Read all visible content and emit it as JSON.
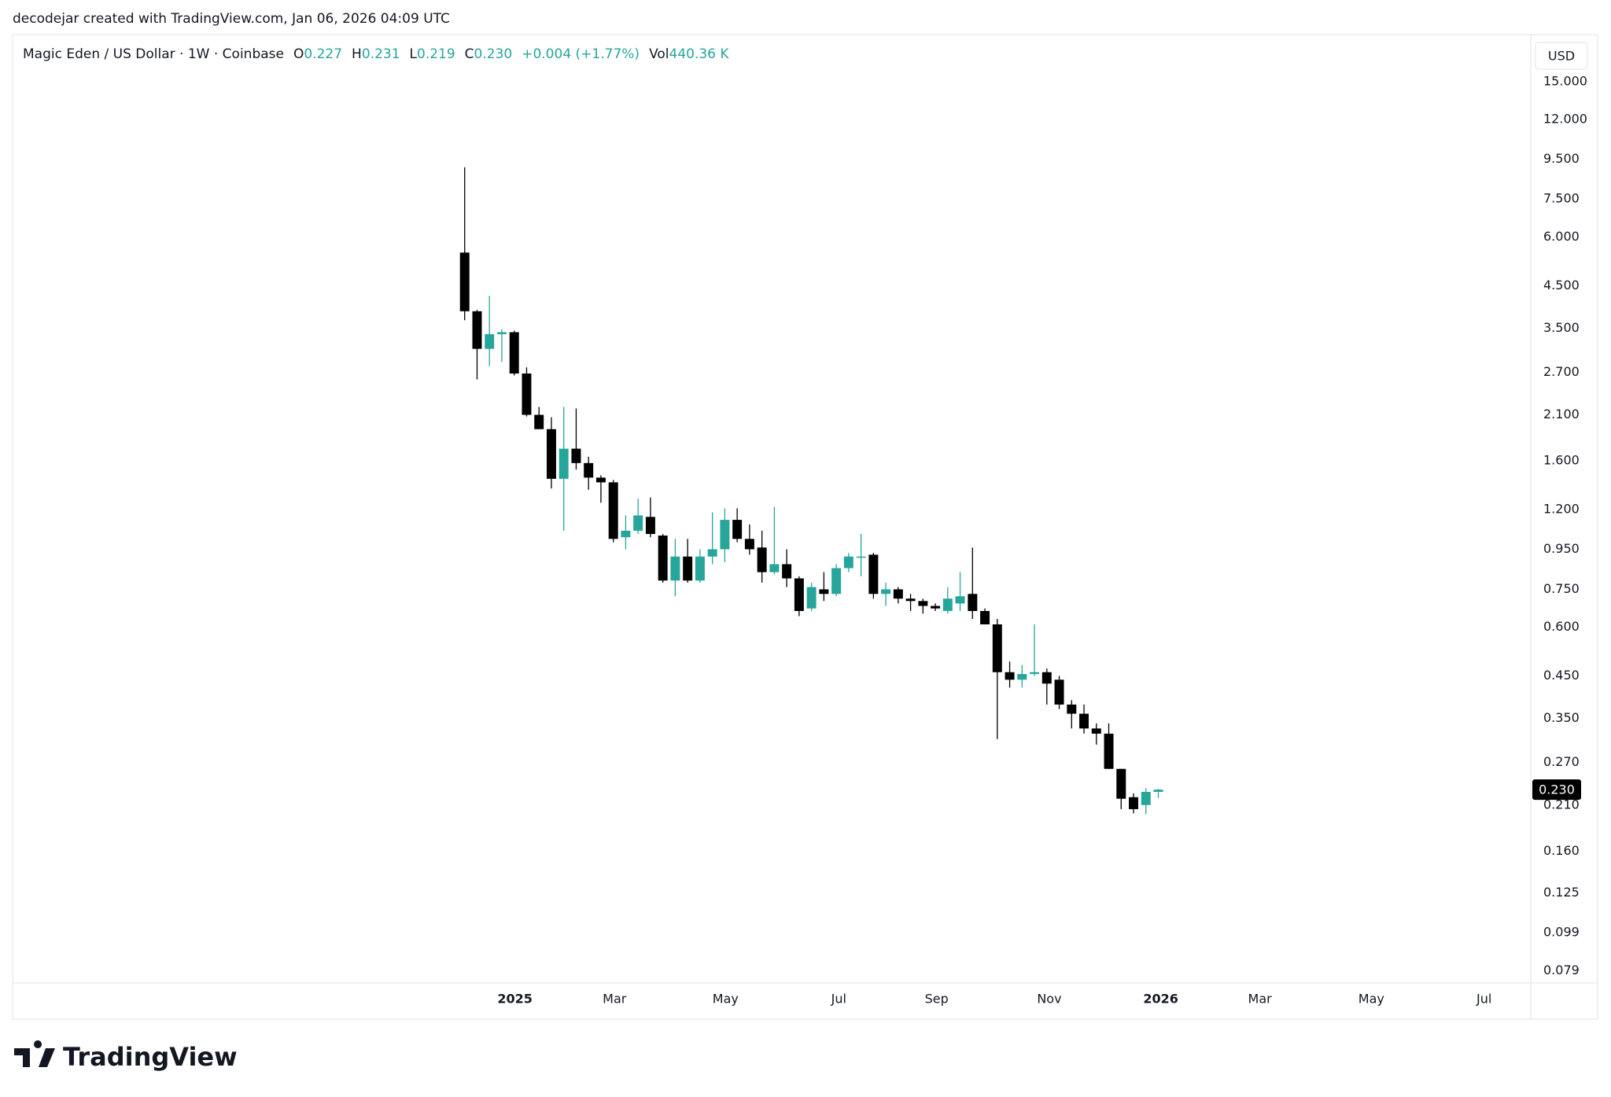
{
  "watermark": "decodejar created with TradingView.com, Jan 06, 2026 04:09 UTC",
  "legend": {
    "symbol": "Magic Eden / US Dollar · 1W · Coinbase",
    "fields": [
      {
        "label": "O",
        "value": "0.227"
      },
      {
        "label": "H",
        "value": "0.231"
      },
      {
        "label": "L",
        "value": "0.219"
      },
      {
        "label": "C",
        "value": "0.230"
      }
    ],
    "change": "+0.004 (+1.77%)",
    "volume_label": "Vol",
    "volume": "440.36 K"
  },
  "brand": "TradingView",
  "chart_data": {
    "type": "candlestick",
    "currency": "USD",
    "log_scale": true,
    "grid": false,
    "up_color": "#26a69a",
    "down_color": "#000000",
    "x": [
      0,
      1,
      2,
      3,
      4,
      5,
      6,
      7,
      8,
      9,
      10,
      11,
      12,
      13,
      14,
      15,
      16,
      17,
      18,
      19,
      20,
      21,
      22,
      23,
      24,
      25,
      26,
      27,
      28,
      29,
      30,
      31,
      32,
      33,
      34,
      35,
      36,
      37,
      38,
      39,
      40,
      41,
      42,
      43,
      44,
      45,
      46,
      47,
      48,
      49,
      50,
      51,
      52,
      53,
      54,
      55,
      56
    ],
    "open": [
      5.47,
      3.87,
      3.1,
      3.38,
      3.42,
      2.68,
      2.1,
      1.93,
      1.44,
      1.72,
      1.58,
      1.45,
      1.41,
      1.02,
      1.06,
      1.15,
      1.03,
      0.79,
      0.91,
      0.79,
      0.91,
      0.95,
      1.13,
      1.01,
      0.96,
      0.83,
      0.87,
      0.8,
      0.67,
      0.75,
      0.73,
      0.85,
      0.91,
      0.92,
      0.73,
      0.75,
      0.71,
      0.7,
      0.68,
      0.66,
      0.69,
      0.73,
      0.66,
      0.61,
      0.46,
      0.44,
      0.455,
      0.46,
      0.44,
      0.38,
      0.36,
      0.33,
      0.32,
      0.26,
      0.22,
      0.21,
      0.227
    ],
    "high": [
      9.05,
      3.9,
      4.24,
      3.48,
      3.45,
      2.78,
      2.2,
      2.07,
      2.2,
      2.18,
      1.64,
      1.47,
      1.43,
      1.16,
      1.28,
      1.29,
      1.04,
      1.01,
      1.01,
      0.95,
      1.18,
      1.21,
      1.21,
      1.1,
      1.06,
      1.22,
      0.95,
      0.81,
      0.78,
      0.83,
      0.87,
      0.93,
      1.04,
      0.93,
      0.78,
      0.76,
      0.73,
      0.71,
      0.69,
      0.76,
      0.83,
      0.96,
      0.67,
      0.63,
      0.49,
      0.48,
      0.61,
      0.47,
      0.45,
      0.39,
      0.38,
      0.34,
      0.34,
      0.26,
      0.225,
      0.232,
      0.231
    ],
    "low": [
      3.67,
      2.59,
      2.8,
      2.87,
      2.65,
      2.08,
      1.93,
      1.36,
      1.06,
      1.52,
      1.35,
      1.25,
      0.99,
      0.95,
      1.04,
      1.02,
      0.78,
      0.72,
      0.78,
      0.78,
      0.87,
      0.88,
      0.99,
      0.92,
      0.78,
      0.82,
      0.76,
      0.64,
      0.66,
      0.7,
      0.72,
      0.83,
      0.81,
      0.71,
      0.68,
      0.69,
      0.66,
      0.65,
      0.66,
      0.65,
      0.66,
      0.63,
      0.61,
      0.31,
      0.42,
      0.42,
      0.45,
      0.38,
      0.37,
      0.33,
      0.32,
      0.3,
      0.26,
      0.205,
      0.2,
      0.199,
      0.219
    ],
    "close": [
      3.87,
      3.1,
      3.38,
      3.42,
      2.68,
      2.1,
      1.93,
      1.44,
      1.72,
      1.58,
      1.45,
      1.41,
      1.01,
      1.06,
      1.16,
      1.04,
      0.79,
      0.91,
      0.79,
      0.91,
      0.95,
      1.13,
      1.01,
      0.95,
      0.83,
      0.87,
      0.8,
      0.66,
      0.76,
      0.73,
      0.85,
      0.91,
      0.91,
      0.73,
      0.75,
      0.71,
      0.7,
      0.68,
      0.67,
      0.71,
      0.72,
      0.66,
      0.61,
      0.46,
      0.44,
      0.455,
      0.46,
      0.43,
      0.38,
      0.36,
      0.33,
      0.32,
      0.26,
      0.218,
      0.205,
      0.227,
      0.23
    ],
    "xlim": [
      -36.5,
      86.07
    ],
    "xticks": [
      {
        "value": 4.06,
        "label": "2025"
      },
      {
        "value": 12.1,
        "label": "Mar"
      },
      {
        "value": 21.06,
        "label": "May"
      },
      {
        "value": 30.2,
        "label": "Jul"
      },
      {
        "value": 38.1,
        "label": "Sep"
      },
      {
        "value": 47.2,
        "label": "Nov"
      },
      {
        "value": 56.2,
        "label": "2026"
      },
      {
        "value": 64.2,
        "label": "Mar"
      },
      {
        "value": 73.2,
        "label": "May"
      },
      {
        "value": 82.3,
        "label": "Jul"
      }
    ],
    "ylim": [
      0.0735,
      19.8
    ],
    "yticks": [
      {
        "value": 15,
        "label": "15.000"
      },
      {
        "value": 12,
        "label": "12.000"
      },
      {
        "value": 9.5,
        "label": "9.500"
      },
      {
        "value": 7.5,
        "label": "7.500"
      },
      {
        "value": 6,
        "label": "6.000"
      },
      {
        "value": 4.5,
        "label": "4.500"
      },
      {
        "value": 3.5,
        "label": "3.500"
      },
      {
        "value": 2.7,
        "label": "2.700"
      },
      {
        "value": 2.1,
        "label": "2.100"
      },
      {
        "value": 1.6,
        "label": "1.600"
      },
      {
        "value": 1.2,
        "label": "1.200"
      },
      {
        "value": 0.95,
        "label": "0.950"
      },
      {
        "value": 0.75,
        "label": "0.750"
      },
      {
        "value": 0.6,
        "label": "0.600"
      },
      {
        "value": 0.45,
        "label": "0.450"
      },
      {
        "value": 0.35,
        "label": "0.350"
      },
      {
        "value": 0.27,
        "label": "0.270"
      },
      {
        "value": 0.21,
        "label": "0.210"
      },
      {
        "value": 0.16,
        "label": "0.160"
      },
      {
        "value": 0.125,
        "label": "0.125"
      },
      {
        "value": 0.099,
        "label": "0.099"
      },
      {
        "value": 0.079,
        "label": "0.079"
      }
    ],
    "last_price": {
      "value": 0.23,
      "label": "0.230"
    }
  }
}
